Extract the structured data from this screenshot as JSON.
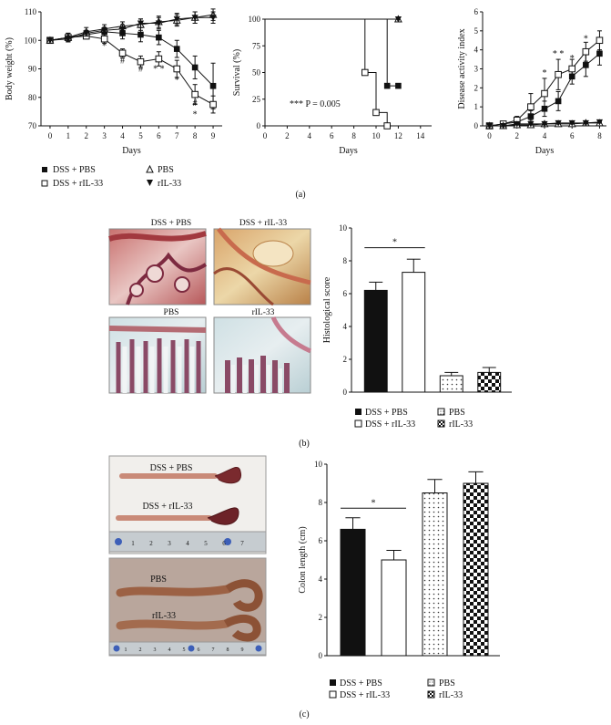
{
  "panel_labels": {
    "a": "(a)",
    "b": "(b)",
    "c": "(c)"
  },
  "legend": {
    "dss_pbs": "DSS + PBS",
    "dss_ril33": "DSS + rIL-33",
    "pbs": "PBS",
    "ril33": "rIL-33"
  },
  "chart_data": [
    {
      "id": "body-weight",
      "type": "line",
      "xlabel": "Days",
      "ylabel": "Body weight (%)",
      "xlim": [
        -0.5,
        9.5
      ],
      "ylim": [
        70,
        110
      ],
      "xticks": [
        0,
        1,
        2,
        3,
        4,
        5,
        6,
        7,
        8,
        9
      ],
      "yticks": [
        70,
        80,
        90,
        100,
        110
      ],
      "annotations": [
        {
          "text": "*",
          "x": 3,
          "y": 97
        },
        {
          "text": "#",
          "x": 4,
          "y": 92
        },
        {
          "text": "#",
          "x": 5,
          "y": 89
        },
        {
          "text": "* *",
          "x": 6,
          "y": 89
        },
        {
          "text": "*",
          "x": 7,
          "y": 85
        },
        {
          "text": "#",
          "x": 8,
          "y": 77
        },
        {
          "text": "*",
          "x": 8,
          "y": 73
        }
      ],
      "series": [
        {
          "name": "DSS + PBS",
          "marker": "square-filled",
          "x": [
            0,
            1,
            2,
            3,
            4,
            5,
            6,
            7,
            8,
            9
          ],
          "y": [
            100,
            101,
            102,
            103,
            102.5,
            102,
            101,
            97,
            90.5,
            84
          ],
          "err": [
            0,
            1.5,
            1,
            1.5,
            2,
            2.5,
            2.5,
            3,
            4,
            8
          ]
        },
        {
          "name": "DSS + rIL-33",
          "marker": "square-open",
          "x": [
            0,
            1,
            2,
            3,
            4,
            5,
            6,
            7,
            8,
            9
          ],
          "y": [
            100,
            101,
            101.5,
            100.5,
            95.5,
            92.5,
            93.5,
            90,
            81,
            77.5
          ],
          "err": [
            0,
            1.5,
            1,
            1.5,
            1.5,
            2,
            2.5,
            3,
            3.5,
            3
          ]
        },
        {
          "name": "PBS",
          "marker": "triangle-up-open",
          "x": [
            0,
            1,
            2,
            3,
            4,
            5,
            6,
            7,
            8,
            9
          ],
          "y": [
            100,
            101,
            103,
            104,
            105,
            105.5,
            106.5,
            107,
            108,
            109
          ],
          "err": [
            0,
            1.5,
            1.5,
            1.5,
            1.5,
            2,
            2,
            2,
            2,
            2
          ]
        },
        {
          "name": "rIL-33",
          "marker": "triangle-down-filled",
          "x": [
            0,
            1,
            2,
            3,
            4,
            5,
            6,
            7,
            8,
            9
          ],
          "y": [
            100,
            100.5,
            102.5,
            103.5,
            104,
            106,
            106,
            107.5,
            108,
            108
          ],
          "err": [
            0,
            1,
            1,
            1,
            1.5,
            1.5,
            2,
            2,
            2,
            2
          ]
        }
      ]
    },
    {
      "id": "survival",
      "type": "line",
      "xlabel": "Days",
      "ylabel": "Survival (%)",
      "xlim": [
        0,
        15
      ],
      "ylim": [
        0,
        100
      ],
      "xticks": [
        0,
        2,
        4,
        6,
        8,
        10,
        12,
        14
      ],
      "yticks": [
        0,
        25,
        50,
        75,
        100
      ],
      "annotation": "*** P = 0.005",
      "series": [
        {
          "name": "DSS + PBS",
          "marker": "square-filled",
          "steps": [
            [
              0,
              100
            ],
            [
              11,
              100
            ],
            [
              11,
              37.5
            ],
            [
              12,
              37.5
            ]
          ],
          "points": [
            [
              11,
              37.5
            ],
            [
              12,
              37.5
            ]
          ]
        },
        {
          "name": "DSS + rIL-33",
          "marker": "square-open",
          "steps": [
            [
              0,
              100
            ],
            [
              9,
              100
            ],
            [
              9,
              50
            ],
            [
              10,
              50
            ],
            [
              10,
              12.5
            ],
            [
              11,
              12.5
            ],
            [
              11,
              0
            ]
          ],
          "points": [
            [
              9,
              50
            ],
            [
              10,
              12.5
            ],
            [
              11,
              0
            ]
          ]
        },
        {
          "name": "PBS",
          "marker": "triangle-up-open",
          "steps": [
            [
              0,
              100
            ],
            [
              12,
              100
            ]
          ],
          "points": [
            [
              12,
              100
            ]
          ]
        },
        {
          "name": "rIL-33",
          "marker": "triangle-down-filled",
          "steps": [
            [
              0,
              100
            ],
            [
              12,
              100
            ]
          ],
          "points": [
            [
              12,
              100
            ]
          ]
        }
      ]
    },
    {
      "id": "dai",
      "type": "line",
      "xlabel": "Days",
      "ylabel": "Disease activity index",
      "xlim": [
        -0.5,
        8.5
      ],
      "ylim": [
        0,
        6
      ],
      "xticks": [
        0,
        2,
        4,
        6,
        8
      ],
      "yticks": [
        0,
        1,
        2,
        3,
        4,
        5,
        6
      ],
      "annotations": [
        {
          "text": "*",
          "x": 4,
          "y": 2.65
        },
        {
          "text": "* *",
          "x": 5,
          "y": 3.65
        },
        {
          "text": "*",
          "x": 6,
          "y": 3.4
        },
        {
          "text": "*",
          "x": 7,
          "y": 4.45
        }
      ],
      "series": [
        {
          "name": "DSS + PBS",
          "marker": "square-filled",
          "x": [
            0,
            1,
            2,
            3,
            4,
            5,
            6,
            7,
            8
          ],
          "y": [
            0,
            0.1,
            0.2,
            0.5,
            0.9,
            1.3,
            2.6,
            3.2,
            3.8
          ],
          "err": [
            0,
            0.1,
            0.15,
            0.3,
            0.4,
            0.5,
            0.4,
            0.6,
            0.6
          ]
        },
        {
          "name": "DSS + rIL-33",
          "marker": "square-open",
          "x": [
            0,
            1,
            2,
            3,
            4,
            5,
            6,
            7,
            8
          ],
          "y": [
            0,
            0.1,
            0.3,
            1.0,
            1.7,
            2.7,
            3.0,
            3.9,
            4.5
          ],
          "err": [
            0,
            0.1,
            0.2,
            0.7,
            0.8,
            0.8,
            0.5,
            0.5,
            0.5
          ]
        },
        {
          "name": "PBS",
          "marker": "triangle-up-open",
          "x": [
            0,
            1,
            2,
            3,
            4,
            5,
            6,
            7,
            8
          ],
          "y": [
            0,
            0,
            0.05,
            0.05,
            0.1,
            0.1,
            0.1,
            0.15,
            0.15
          ],
          "err": [
            0,
            0,
            0.05,
            0.05,
            0.05,
            0.05,
            0.05,
            0.05,
            0.05
          ]
        },
        {
          "name": "rIL-33",
          "marker": "triangle-down-filled",
          "x": [
            0,
            1,
            2,
            3,
            4,
            5,
            6,
            7,
            8
          ],
          "y": [
            0,
            0,
            0.1,
            0.1,
            0.1,
            0.15,
            0.15,
            0.15,
            0.2
          ],
          "err": [
            0,
            0,
            0.05,
            0.05,
            0.05,
            0.05,
            0.05,
            0.05,
            0.05
          ]
        }
      ]
    },
    {
      "id": "histological-score",
      "type": "bar",
      "ylabel": "Histological score",
      "ylim": [
        0,
        10
      ],
      "yticks": [
        0,
        2,
        4,
        6,
        8,
        10
      ],
      "categories": [
        "DSS + PBS",
        "DSS + rIL-33",
        "PBS",
        "rIL-33"
      ],
      "values": [
        6.2,
        7.3,
        1.0,
        1.2
      ],
      "err": [
        0.5,
        0.8,
        0.2,
        0.3
      ],
      "fills": [
        "solid",
        "open",
        "dots",
        "check"
      ],
      "significance": {
        "from": 0,
        "to": 1,
        "y": 8.8,
        "text": "*"
      }
    },
    {
      "id": "colon-length",
      "type": "bar",
      "ylabel": "Colon length (cm)",
      "ylim": [
        0,
        10
      ],
      "yticks": [
        0,
        2,
        4,
        6,
        8,
        10
      ],
      "categories": [
        "DSS + PBS",
        "DSS + rIL-33",
        "PBS",
        "rIL-33"
      ],
      "values": [
        6.6,
        5.0,
        8.5,
        9.0
      ],
      "err": [
        0.6,
        0.5,
        0.7,
        0.6
      ],
      "fills": [
        "solid",
        "open",
        "dots",
        "check"
      ],
      "significance": {
        "from": 0,
        "to": 1,
        "y": 7.7,
        "text": "*"
      }
    }
  ],
  "histology": {
    "labels": [
      "DSS + PBS",
      "DSS + rIL-33",
      "PBS",
      "rIL-33"
    ]
  },
  "colon_photo": {
    "labels": [
      "DSS + PBS",
      "DSS + rIL-33",
      "PBS",
      "rIL-33"
    ],
    "ruler_numbers_top": [
      "1",
      "2",
      "3",
      "4",
      "5",
      "6",
      "7"
    ],
    "ruler_numbers_bottom": [
      "1",
      "2",
      "3",
      "4",
      "5",
      "6",
      "7",
      "8",
      "9"
    ]
  }
}
